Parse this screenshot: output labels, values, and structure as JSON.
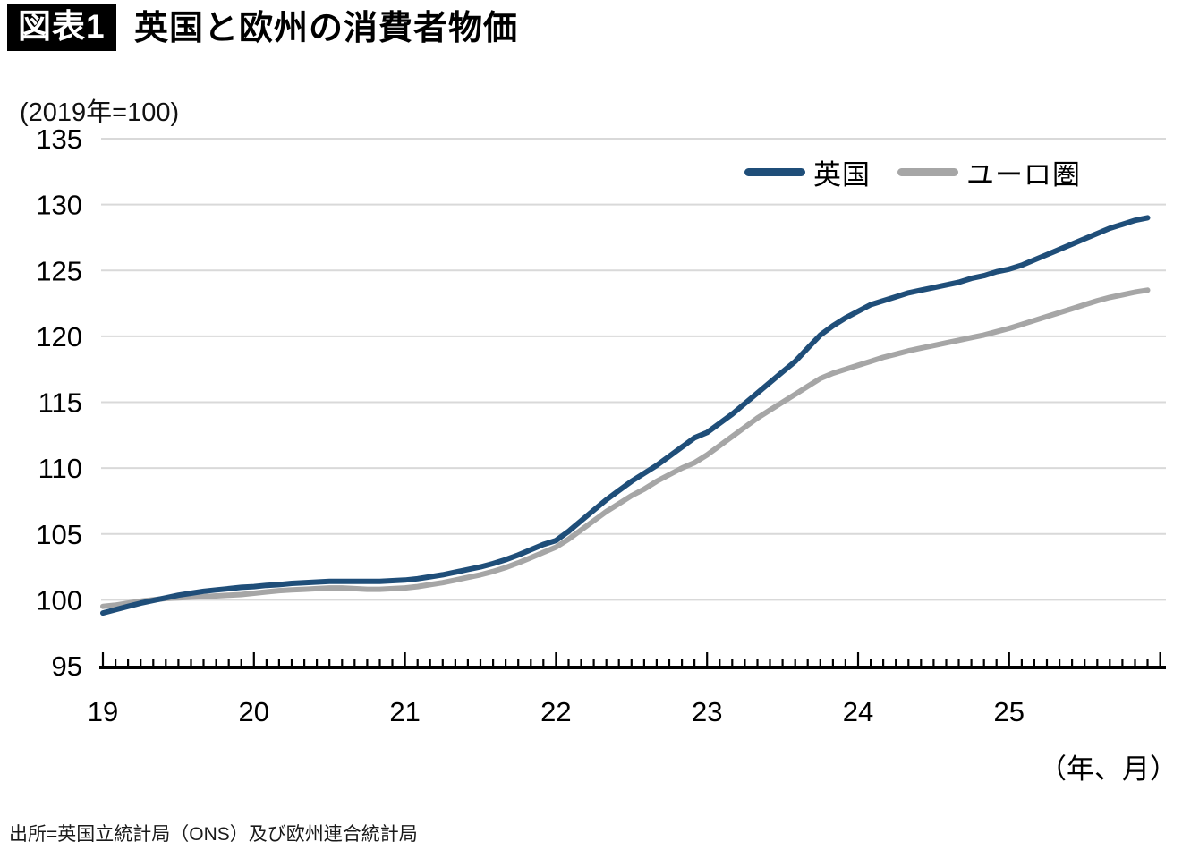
{
  "figure": {
    "badge": "図表1",
    "title": "英国と欧州の消費者物価",
    "unit_note": "(2019年=100)",
    "xaxis_note": "（年、月）",
    "source": "出所=英国立統計局（ONS）及び欧州連合統計局"
  },
  "colors": {
    "uk_line": "#1F4E79",
    "euro_line": "#A6A6A6",
    "gridline": "#D9D9D9",
    "axis": "#000000",
    "badge_bg": "#000000",
    "badge_text": "#FFFFFF"
  },
  "chart_data": {
    "type": "line",
    "title": "英国と欧州の消費者物価",
    "subtitle_unit": "(2019年=100)",
    "x_frequency": "monthly",
    "x_start": "2019-01",
    "x_end": "2025-12",
    "xlabel": "（年、月）",
    "xlabel_ticks": [
      "19",
      "20",
      "21",
      "22",
      "23",
      "24",
      "25"
    ],
    "ylabel": "(2019年=100)",
    "ylim": [
      95,
      135
    ],
    "yticks": [
      95,
      100,
      105,
      110,
      115,
      120,
      125,
      130,
      135
    ],
    "grid": "horizontal",
    "legend_position": "top-right-inside",
    "series": [
      {
        "name": "英国",
        "key": "uk",
        "color": "#1F4E79",
        "values": [
          99.0,
          99.25,
          99.5,
          99.75,
          99.95,
          100.15,
          100.35,
          100.5,
          100.65,
          100.75,
          100.85,
          100.95,
          101.0,
          101.1,
          101.15,
          101.25,
          101.3,
          101.35,
          101.4,
          101.4,
          101.4,
          101.4,
          101.4,
          101.45,
          101.5,
          101.6,
          101.75,
          101.9,
          102.1,
          102.3,
          102.5,
          102.75,
          103.05,
          103.4,
          103.8,
          104.2,
          104.5,
          105.2,
          106.0,
          106.8,
          107.6,
          108.3,
          109.0,
          109.6,
          110.2,
          110.9,
          111.6,
          112.3,
          112.7,
          113.4,
          114.1,
          114.9,
          115.7,
          116.5,
          117.3,
          118.1,
          119.1,
          120.1,
          120.8,
          121.4,
          121.9,
          122.4,
          122.7,
          123.0,
          123.3,
          123.5,
          123.7,
          123.9,
          124.1,
          124.4,
          124.6,
          124.9,
          125.1,
          125.4,
          125.8,
          126.2,
          126.6,
          127.0,
          127.4,
          127.8,
          128.2,
          128.5,
          128.8,
          129.0
        ]
      },
      {
        "name": "ユーロ圏",
        "key": "euro",
        "color": "#A6A6A6",
        "values": [
          99.5,
          99.6,
          99.75,
          99.9,
          100.0,
          100.1,
          100.15,
          100.2,
          100.25,
          100.3,
          100.35,
          100.4,
          100.5,
          100.6,
          100.7,
          100.75,
          100.8,
          100.85,
          100.9,
          100.9,
          100.85,
          100.8,
          100.8,
          100.85,
          100.9,
          101.0,
          101.15,
          101.3,
          101.5,
          101.7,
          101.9,
          102.15,
          102.45,
          102.8,
          103.2,
          103.6,
          104.0,
          104.6,
          105.3,
          106.0,
          106.7,
          107.3,
          107.9,
          108.4,
          109.0,
          109.5,
          110.0,
          110.4,
          111.0,
          111.7,
          112.4,
          113.1,
          113.8,
          114.4,
          115.0,
          115.6,
          116.2,
          116.8,
          117.2,
          117.5,
          117.8,
          118.1,
          118.4,
          118.65,
          118.9,
          119.1,
          119.3,
          119.5,
          119.7,
          119.9,
          120.1,
          120.35,
          120.6,
          120.9,
          121.2,
          121.5,
          121.8,
          122.1,
          122.4,
          122.7,
          122.95,
          123.15,
          123.35,
          123.5
        ]
      }
    ]
  }
}
